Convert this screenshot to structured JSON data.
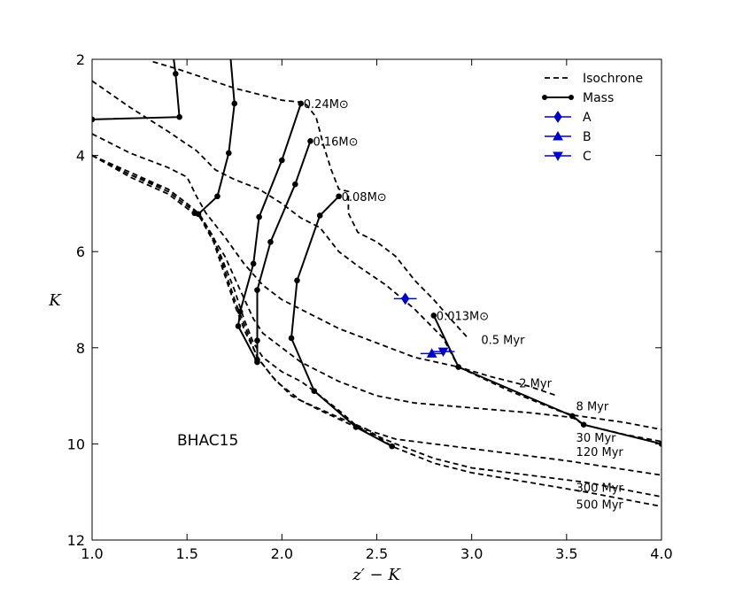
{
  "chart_data": {
    "type": "line",
    "title": "",
    "xlabel": "z′ − K",
    "ylabel": "K",
    "xlim": [
      1.0,
      4.0
    ],
    "ylim": [
      12,
      2
    ],
    "y_inverted": true,
    "grid": false,
    "legend_position": "top-right",
    "xticks": [
      "1.0",
      "1.5",
      "2.0",
      "2.5",
      "3.0",
      "3.5",
      "4.0"
    ],
    "yticks": [
      "2",
      "4",
      "6",
      "8",
      "10",
      "12"
    ],
    "annotation": "BHAC15",
    "legend": [
      {
        "label": "Isochrone",
        "style": "dashed"
      },
      {
        "label": "Mass",
        "style": "solid-dot"
      },
      {
        "label": "A",
        "marker": "diamond",
        "color": "#0000cc"
      },
      {
        "label": "B",
        "marker": "triangle-up",
        "color": "#0000cc"
      },
      {
        "label": "C",
        "marker": "triangle-down",
        "color": "#0000cc"
      }
    ],
    "isochrones": [
      {
        "name": "0.5 Myr",
        "label": "0.5 Myr",
        "points": [
          [
            1.32,
            2.05
          ],
          [
            1.45,
            2.2
          ],
          [
            1.6,
            2.4
          ],
          [
            1.75,
            2.6
          ],
          [
            1.9,
            2.75
          ],
          [
            2.0,
            2.85
          ],
          [
            2.12,
            2.9
          ],
          [
            2.18,
            3.2
          ],
          [
            2.22,
            3.8
          ],
          [
            2.26,
            4.3
          ],
          [
            2.3,
            4.7
          ],
          [
            2.35,
            4.75
          ],
          [
            2.35,
            5.2
          ],
          [
            2.4,
            5.6
          ],
          [
            2.5,
            5.8
          ],
          [
            2.6,
            6.1
          ],
          [
            2.7,
            6.6
          ],
          [
            2.8,
            7.0
          ],
          [
            2.9,
            7.45
          ],
          [
            2.98,
            7.8
          ]
        ]
      },
      {
        "name": "2 Myr",
        "label": "2 Myr",
        "points": [
          [
            1.0,
            2.45
          ],
          [
            1.2,
            3.0
          ],
          [
            1.4,
            3.5
          ],
          [
            1.55,
            3.9
          ],
          [
            1.65,
            4.3
          ],
          [
            1.75,
            4.5
          ],
          [
            1.88,
            4.7
          ],
          [
            2.0,
            5.0
          ],
          [
            2.1,
            5.3
          ],
          [
            2.2,
            5.5
          ],
          [
            2.3,
            6.0
          ],
          [
            2.4,
            6.3
          ],
          [
            2.55,
            6.7
          ],
          [
            2.7,
            7.2
          ],
          [
            2.85,
            7.8
          ],
          [
            2.93,
            8.4
          ],
          [
            3.1,
            8.6
          ],
          [
            3.3,
            8.8
          ],
          [
            3.45,
            9.0
          ]
        ]
      },
      {
        "name": "8 Myr",
        "label": "8 Myr",
        "points": [
          [
            1.0,
            3.55
          ],
          [
            1.2,
            3.95
          ],
          [
            1.4,
            4.25
          ],
          [
            1.5,
            4.45
          ],
          [
            1.55,
            4.85
          ],
          [
            1.6,
            5.2
          ],
          [
            1.7,
            5.7
          ],
          [
            1.8,
            6.25
          ],
          [
            1.9,
            6.7
          ],
          [
            2.0,
            7.0
          ],
          [
            2.1,
            7.2
          ],
          [
            2.2,
            7.4
          ],
          [
            2.3,
            7.6
          ],
          [
            2.5,
            7.9
          ],
          [
            2.7,
            8.2
          ],
          [
            2.93,
            8.4
          ],
          [
            3.2,
            8.9
          ],
          [
            3.45,
            9.3
          ],
          [
            3.53,
            9.4
          ],
          [
            3.8,
            9.55
          ],
          [
            4.0,
            9.7
          ]
        ]
      },
      {
        "name": "30 Myr",
        "label": "30 Myr",
        "points": [
          [
            1.0,
            4.0
          ],
          [
            1.2,
            4.35
          ],
          [
            1.4,
            4.7
          ],
          [
            1.5,
            5.0
          ],
          [
            1.56,
            5.2
          ],
          [
            1.62,
            5.6
          ],
          [
            1.7,
            6.1
          ],
          [
            1.78,
            6.8
          ],
          [
            1.85,
            7.4
          ],
          [
            1.9,
            7.7
          ],
          [
            2.0,
            8.0
          ],
          [
            2.1,
            8.3
          ],
          [
            2.2,
            8.5
          ],
          [
            2.3,
            8.7
          ],
          [
            2.5,
            9.0
          ],
          [
            2.7,
            9.15
          ],
          [
            3.0,
            9.25
          ],
          [
            3.3,
            9.35
          ],
          [
            3.53,
            9.45
          ],
          [
            3.59,
            9.6
          ],
          [
            3.8,
            9.8
          ],
          [
            4.0,
            9.95
          ]
        ]
      },
      {
        "name": "120 Myr",
        "label": "120 Myr",
        "points": [
          [
            1.0,
            4.0
          ],
          [
            1.2,
            4.4
          ],
          [
            1.4,
            4.7
          ],
          [
            1.5,
            5.0
          ],
          [
            1.56,
            5.2
          ],
          [
            1.62,
            5.6
          ],
          [
            1.68,
            6.1
          ],
          [
            1.75,
            6.8
          ],
          [
            1.8,
            7.4
          ],
          [
            1.85,
            7.9
          ],
          [
            1.9,
            8.2
          ],
          [
            2.0,
            8.5
          ],
          [
            2.1,
            8.7
          ],
          [
            2.17,
            8.9
          ],
          [
            2.3,
            9.3
          ],
          [
            2.4,
            9.65
          ],
          [
            2.6,
            9.9
          ],
          [
            3.0,
            10.1
          ],
          [
            3.5,
            10.35
          ],
          [
            4.0,
            10.65
          ]
        ]
      },
      {
        "name": "300 Myr",
        "label": "300 Myr",
        "points": [
          [
            1.0,
            4.0
          ],
          [
            1.2,
            4.4
          ],
          [
            1.4,
            4.75
          ],
          [
            1.5,
            5.05
          ],
          [
            1.57,
            5.25
          ],
          [
            1.64,
            5.7
          ],
          [
            1.7,
            6.4
          ],
          [
            1.76,
            7.1
          ],
          [
            1.81,
            7.6
          ],
          [
            1.87,
            8.2
          ],
          [
            1.95,
            8.6
          ],
          [
            2.05,
            9.0
          ],
          [
            2.2,
            9.3
          ],
          [
            2.39,
            9.65
          ],
          [
            2.6,
            10.0
          ],
          [
            2.8,
            10.3
          ],
          [
            3.0,
            10.5
          ],
          [
            3.3,
            10.65
          ],
          [
            3.6,
            10.8
          ],
          [
            4.0,
            11.1
          ]
        ]
      },
      {
        "name": "500 Myr",
        "label": "500 Myr",
        "points": [
          [
            1.0,
            4.0
          ],
          [
            1.2,
            4.45
          ],
          [
            1.4,
            4.8
          ],
          [
            1.5,
            5.1
          ],
          [
            1.57,
            5.3
          ],
          [
            1.64,
            5.8
          ],
          [
            1.7,
            6.5
          ],
          [
            1.76,
            7.2
          ],
          [
            1.81,
            7.7
          ],
          [
            1.88,
            8.25
          ],
          [
            1.97,
            8.7
          ],
          [
            2.1,
            9.1
          ],
          [
            2.3,
            9.45
          ],
          [
            2.45,
            9.7
          ],
          [
            2.58,
            10.05
          ],
          [
            2.8,
            10.4
          ],
          [
            3.0,
            10.6
          ],
          [
            3.3,
            10.8
          ],
          [
            3.6,
            11.0
          ],
          [
            4.0,
            11.3
          ]
        ]
      }
    ],
    "masses": [
      {
        "label": "",
        "points": [
          [
            1.43,
            2.0
          ],
          [
            1.44,
            2.3
          ],
          [
            1.46,
            3.2
          ],
          [
            1.0,
            3.25
          ]
        ]
      },
      {
        "label": "",
        "points": [
          [
            1.73,
            2.0
          ],
          [
            1.75,
            2.92
          ],
          [
            1.72,
            3.95
          ],
          [
            1.66,
            4.85
          ],
          [
            1.56,
            5.22
          ],
          [
            1.54,
            5.2
          ]
        ]
      },
      {
        "label": "0.24M⊙",
        "points": [
          [
            2.1,
            2.92
          ],
          [
            2.0,
            4.1
          ],
          [
            1.88,
            5.28
          ],
          [
            1.85,
            6.25
          ],
          [
            1.78,
            7.25
          ],
          [
            1.77,
            7.55
          ],
          [
            1.87,
            8.3
          ]
        ]
      },
      {
        "label": "0.16M⊙",
        "points": [
          [
            2.15,
            3.7
          ],
          [
            2.07,
            4.6
          ],
          [
            1.94,
            5.8
          ],
          [
            1.87,
            6.8
          ],
          [
            1.87,
            7.85
          ],
          [
            1.87,
            8.25
          ]
        ]
      },
      {
        "label": "0.08M⊙",
        "points": [
          [
            2.3,
            4.85
          ],
          [
            2.2,
            5.25
          ],
          [
            2.08,
            6.6
          ],
          [
            2.05,
            7.8
          ],
          [
            2.17,
            8.9
          ],
          [
            2.39,
            9.65
          ],
          [
            2.58,
            10.05
          ]
        ]
      },
      {
        "label": "0.013M⊙",
        "points": [
          [
            2.8,
            7.33
          ],
          [
            2.93,
            8.4
          ],
          [
            3.53,
            9.42
          ],
          [
            3.59,
            9.6
          ],
          [
            4.0,
            10.0
          ]
        ]
      }
    ],
    "objects": [
      {
        "name": "A",
        "marker": "diamond",
        "x": 2.65,
        "y": 6.98,
        "xerr": 0.06
      },
      {
        "name": "B",
        "marker": "triangle-up",
        "x": 2.79,
        "y": 8.12,
        "xerr": 0.06
      },
      {
        "name": "C",
        "marker": "triangle-down",
        "x": 2.85,
        "y": 8.08,
        "xerr": 0.06
      }
    ]
  }
}
